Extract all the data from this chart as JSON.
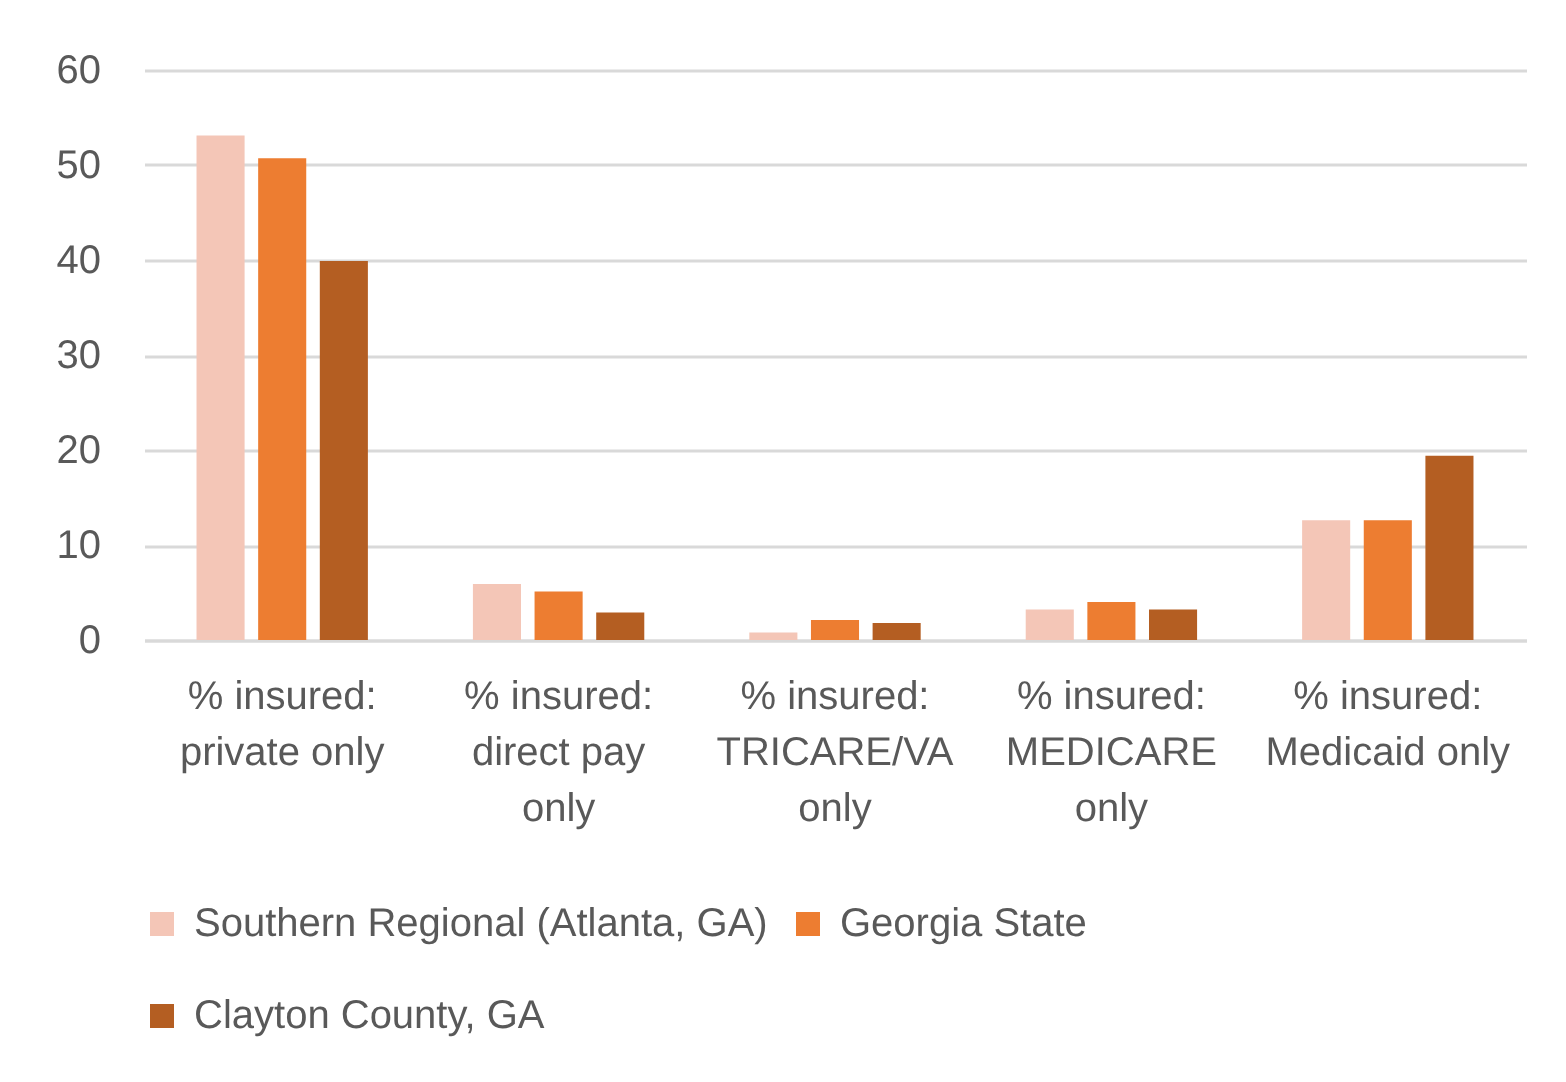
{
  "chart_data": {
    "type": "bar",
    "categories": [
      "% insured: private only",
      "% insured: direct pay only",
      "% insured: TRICARE/VA only",
      "% insured: MEDICARE only",
      "% insured: Medicaid only"
    ],
    "series": [
      {
        "name": "Southern Regional (Atlanta, GA)",
        "color": "#f4c6b7",
        "values": [
          53.1,
          5.9,
          0.8,
          3.2,
          12.6
        ]
      },
      {
        "name": "Georgia State",
        "color": "#ed7d31",
        "values": [
          50.7,
          5.1,
          2.1,
          4.0,
          12.6
        ]
      },
      {
        "name": "Clayton County, GA",
        "color": "#b45e22",
        "values": [
          39.9,
          2.9,
          1.8,
          3.2,
          19.4
        ]
      }
    ],
    "ylim": [
      0,
      60
    ],
    "yticks": [
      0,
      10,
      20,
      30,
      40,
      50,
      60
    ],
    "grid": "y",
    "legend": "bottom left"
  }
}
